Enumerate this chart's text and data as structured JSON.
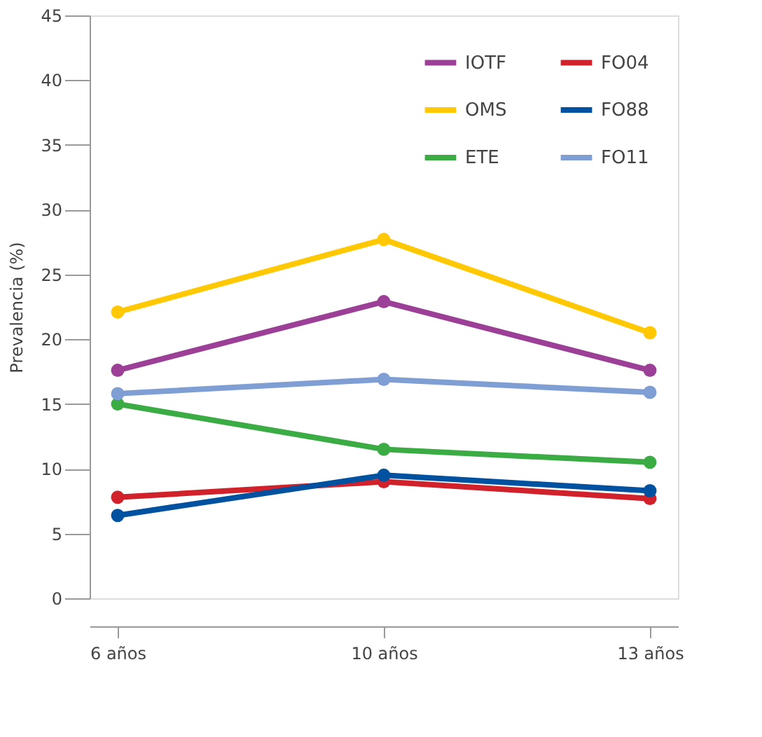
{
  "chart_data": {
    "type": "line",
    "ylabel": "Prevalencia (%)",
    "categories": [
      "6 años",
      "10 años",
      "13 años"
    ],
    "ylim": [
      0,
      45
    ],
    "yticks": [
      0,
      5,
      10,
      15,
      20,
      25,
      30,
      35,
      40,
      45
    ],
    "grid": false,
    "legend": "top right",
    "marker": "circle",
    "line_style": "solid",
    "series": [
      {
        "name": "IOTF",
        "color": "#9b3f97",
        "values": [
          17.6,
          22.9,
          17.6
        ]
      },
      {
        "name": "OMS",
        "color": "#ffc800",
        "values": [
          22.1,
          27.7,
          20.5
        ]
      },
      {
        "name": "ETE",
        "color": "#3bab44",
        "values": [
          15.0,
          11.5,
          10.5
        ]
      },
      {
        "name": "FO04",
        "color": "#d1222c",
        "values": [
          7.8,
          9.0,
          7.7
        ]
      },
      {
        "name": "FO88",
        "color": "#0051a0",
        "values": [
          6.4,
          9.5,
          8.3
        ]
      },
      {
        "name": "FO11",
        "color": "#7f9fd4",
        "values": [
          15.8,
          16.9,
          15.9
        ]
      }
    ]
  }
}
